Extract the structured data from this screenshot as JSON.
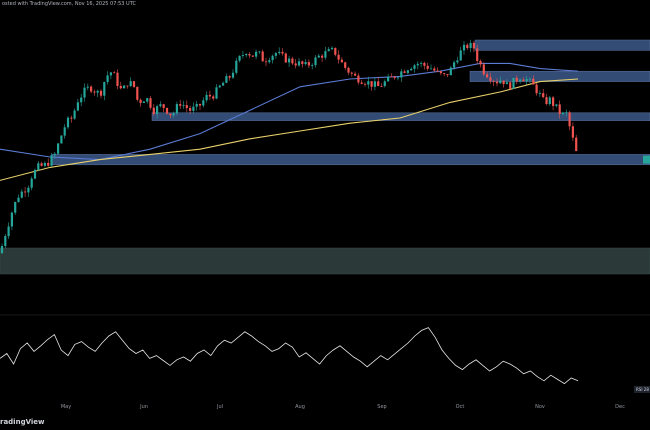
{
  "header": {
    "published_text": "osted with TradingView.com, Nov 16, 2025 07:53 UTC"
  },
  "watermark": {
    "brand": "radingView"
  },
  "colors": {
    "background": "#000000",
    "up_candle": "#26a69a",
    "down_candle": "#ef5350",
    "ma_short": "#5b7bd5",
    "ma_long": "#e8d06a",
    "zone_blue": "#3d5a8a",
    "zone_teal": "#3a4e4c",
    "indicator_line": "#e6e6e6"
  },
  "chart_data": [
    {
      "type": "candlestick",
      "title": "",
      "x_ticks": [
        "May",
        "Jun",
        "Jul",
        "Aug",
        "Sep",
        "Oct",
        "Nov",
        "Dec"
      ],
      "ylim": [
        0,
        100
      ],
      "grid": false,
      "legend": "none",
      "price_path": [
        [
          0,
          18
        ],
        [
          5,
          25
        ],
        [
          12,
          34
        ],
        [
          18,
          40
        ],
        [
          28,
          44
        ],
        [
          32,
          48
        ],
        [
          38,
          51
        ],
        [
          46,
          52
        ],
        [
          55,
          56
        ],
        [
          60,
          62
        ],
        [
          66,
          68
        ],
        [
          72,
          70
        ],
        [
          78,
          77
        ],
        [
          84,
          80
        ],
        [
          90,
          82
        ],
        [
          100,
          79
        ],
        [
          106,
          86
        ],
        [
          112,
          88
        ],
        [
          118,
          83
        ],
        [
          122,
          80
        ],
        [
          128,
          84
        ],
        [
          134,
          82
        ],
        [
          138,
          76
        ],
        [
          146,
          78
        ],
        [
          154,
          73
        ],
        [
          162,
          75
        ],
        [
          172,
          71
        ],
        [
          180,
          76
        ],
        [
          190,
          73
        ],
        [
          198,
          74
        ],
        [
          206,
          78
        ],
        [
          214,
          79
        ],
        [
          222,
          83
        ],
        [
          230,
          86
        ],
        [
          238,
          92
        ],
        [
          246,
          96
        ],
        [
          252,
          94
        ],
        [
          258,
          95
        ],
        [
          264,
          92
        ],
        [
          270,
          94
        ],
        [
          276,
          95
        ],
        [
          284,
          93
        ],
        [
          290,
          92
        ],
        [
          298,
          91
        ],
        [
          306,
          90
        ],
        [
          314,
          92
        ],
        [
          320,
          94
        ],
        [
          326,
          95
        ],
        [
          334,
          96
        ],
        [
          340,
          92
        ],
        [
          346,
          89
        ],
        [
          354,
          86
        ],
        [
          360,
          85
        ],
        [
          366,
          84
        ],
        [
          372,
          83
        ],
        [
          378,
          82
        ],
        [
          386,
          84
        ],
        [
          394,
          86
        ],
        [
          402,
          88
        ],
        [
          410,
          90
        ],
        [
          418,
          91
        ],
        [
          426,
          90
        ],
        [
          432,
          89
        ],
        [
          438,
          87
        ],
        [
          444,
          86
        ],
        [
          450,
          88
        ],
        [
          456,
          93
        ],
        [
          462,
          96
        ],
        [
          468,
          98
        ],
        [
          474,
          97
        ],
        [
          478,
          92
        ],
        [
          484,
          88
        ],
        [
          490,
          86
        ],
        [
          496,
          84
        ],
        [
          502,
          85
        ],
        [
          508,
          82
        ],
        [
          514,
          84
        ],
        [
          520,
          86
        ],
        [
          526,
          85
        ],
        [
          532,
          83
        ],
        [
          538,
          80
        ],
        [
          544,
          76
        ],
        [
          550,
          77
        ],
        [
          556,
          74
        ],
        [
          562,
          71
        ],
        [
          566,
          72
        ],
        [
          570,
          66
        ],
        [
          574,
          60
        ],
        [
          578,
          54
        ]
      ],
      "moving_averages": [
        {
          "points": [
            [
              0,
              58
            ],
            [
              50,
              55
            ],
            [
              100,
              54
            ],
            [
              150,
              58
            ],
            [
              200,
              64
            ],
            [
              250,
              73
            ],
            [
              300,
              82
            ],
            [
              350,
              85
            ],
            [
              400,
              86
            ],
            [
              440,
              88
            ],
            [
              480,
              91
            ],
            [
              510,
              91
            ],
            [
              540,
              89
            ],
            [
              578,
              88
            ]
          ]
        },
        {
          "points": [
            [
              0,
              46
            ],
            [
              50,
              51
            ],
            [
              100,
              54
            ],
            [
              150,
              56
            ],
            [
              200,
              58
            ],
            [
              250,
              62
            ],
            [
              300,
              65
            ],
            [
              350,
              68
            ],
            [
              400,
              70
            ],
            [
              450,
              76
            ],
            [
              500,
              80
            ],
            [
              540,
              84
            ],
            [
              578,
              85
            ]
          ]
        }
      ],
      "zones": [
        {
          "x_from": 475,
          "x_to": 650,
          "y_from": 96,
          "y_to": 100,
          "kind": "blue"
        },
        {
          "x_from": 470,
          "x_to": 650,
          "y_from": 84,
          "y_to": 88,
          "kind": "blue"
        },
        {
          "x_from": 152,
          "x_to": 650,
          "y_from": 69,
          "y_to": 72,
          "kind": "blue"
        },
        {
          "x_from": 52,
          "x_to": 650,
          "y_from": 52,
          "y_to": 56,
          "kind": "blue"
        },
        {
          "x_from": 0,
          "x_to": 650,
          "y_from": 10,
          "y_to": 20,
          "kind": "teal"
        }
      ]
    },
    {
      "type": "line",
      "title": "",
      "ylim": [
        0,
        100
      ],
      "indicator_badge": "RSI 28",
      "values": [
        48,
        55,
        40,
        62,
        70,
        58,
        66,
        75,
        82,
        60,
        52,
        68,
        72,
        64,
        58,
        70,
        80,
        86,
        74,
        62,
        55,
        60,
        48,
        52,
        45,
        38,
        46,
        50,
        44,
        55,
        60,
        52,
        66,
        74,
        70,
        78,
        86,
        80,
        72,
        66,
        58,
        62,
        70,
        64,
        50,
        56,
        48,
        40,
        52,
        60,
        66,
        58,
        50,
        44,
        36,
        44,
        52,
        46,
        54,
        62,
        70,
        80,
        88,
        92,
        78,
        60,
        48,
        38,
        32,
        40,
        46,
        38,
        30,
        36,
        44,
        40,
        34,
        26,
        30,
        22,
        16,
        24,
        18,
        12,
        20,
        16
      ]
    }
  ]
}
